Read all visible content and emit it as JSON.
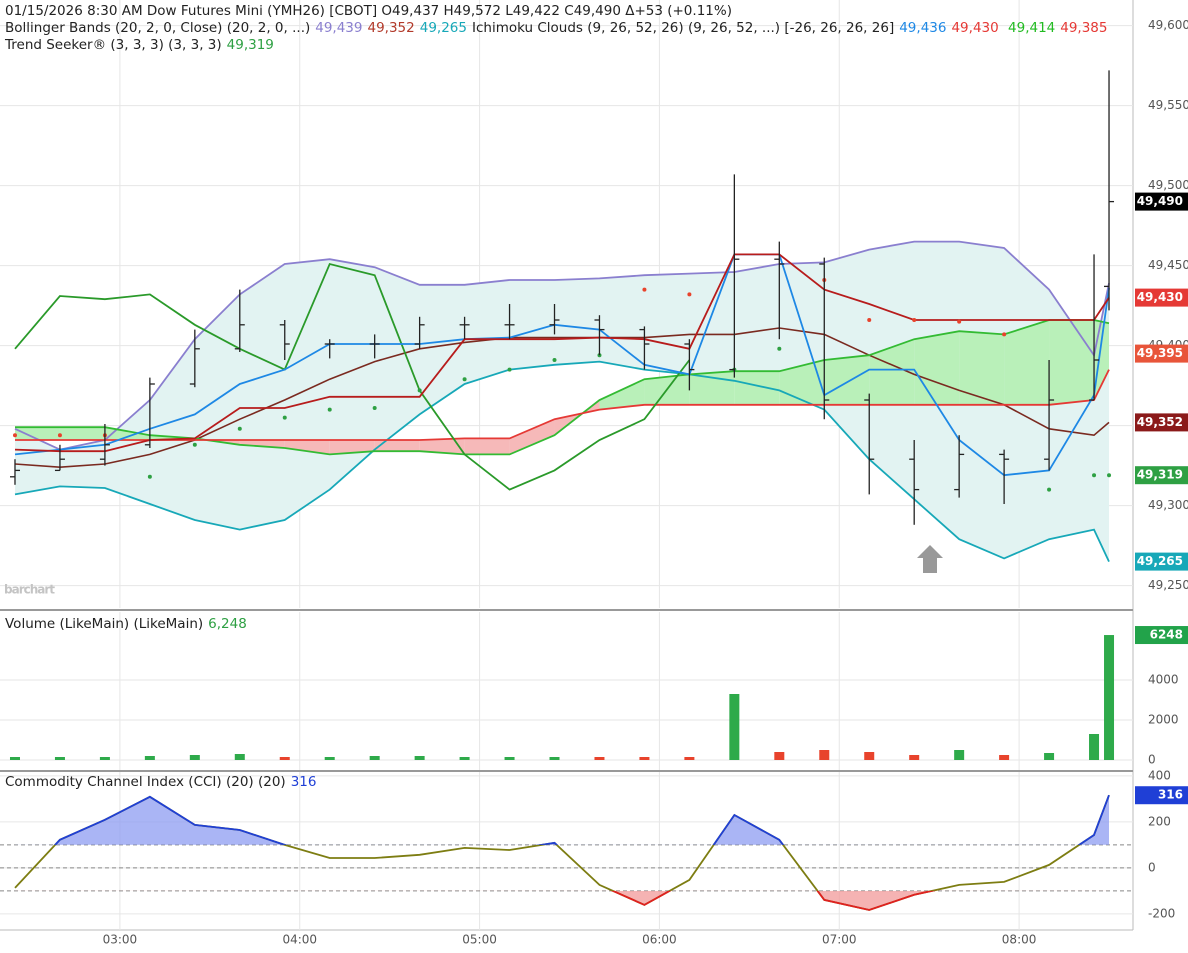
{
  "chart_data": [
    {
      "type": "ohlc",
      "legend": [
        [
          {
            "text": "01/15/2026  8:30 AM Dow Futures Mini (YMH26) [CBOT] O49,437 H49,572 L49,422 C49,490 Δ+53 (+0.11%)",
            "color": "#222222"
          }
        ],
        [
          {
            "text": "Bollinger Bands (20, 2, 0, Close)  (20, 2, 0, ...)",
            "color": "#222222"
          },
          {
            "text": "49,439",
            "color": "#8a7fcf"
          },
          {
            "text": "49,352",
            "color": "#b23a2a"
          },
          {
            "text": "49,265",
            "color": "#17a8b8"
          },
          {
            "text": "Ichimoku Clouds (9, 26, 52, 26)  (9, 26, 52, ...) [-26, 26, 26, 26]",
            "color": "#222222"
          },
          {
            "text": "49,436",
            "color": "#1e88e5"
          },
          {
            "text": "49,430",
            "color": "#e53935"
          },
          {
            "text": " 49,414",
            "color": "#22bb22"
          },
          {
            "text": "49,385",
            "color": "#e53935"
          }
        ],
        [
          {
            "text": "Trend Seeker® (3, 3, 3)  (3, 3, 3)",
            "color": "#222222"
          },
          {
            "text": "49,319",
            "color": "#2ea043"
          }
        ]
      ],
      "watermark": "barchart",
      "x": [
        "02:25",
        "02:40",
        "02:55",
        "03:10",
        "03:25",
        "03:40",
        "03:55",
        "04:10",
        "04:25",
        "04:40",
        "04:55",
        "05:10",
        "05:25",
        "05:40",
        "05:55",
        "06:10",
        "06:25",
        "06:40",
        "06:55",
        "07:10",
        "07:25",
        "07:40",
        "07:55",
        "08:10",
        "08:25",
        "08:30"
      ],
      "xlim": [
        "02:20",
        "08:38"
      ],
      "xticks": [
        "03:00",
        "04:00",
        "05:00",
        "06:00",
        "07:00",
        "08:00"
      ],
      "open": [
        49318,
        49322,
        49329,
        49338,
        49376,
        49398,
        49413,
        49401,
        49401,
        49401,
        49413,
        49413,
        49413,
        49416,
        49410,
        49401,
        49385,
        49454,
        49451,
        49366,
        49329,
        49310,
        49332,
        49329,
        49366,
        49437
      ],
      "high": [
        49329,
        49338,
        49351,
        49380,
        49410,
        49435,
        49416,
        49404,
        49407,
        49418,
        49418,
        49426,
        49426,
        49419,
        49412,
        49404,
        49507,
        49465,
        49455,
        49370,
        49341,
        49344,
        49335,
        49391,
        49457,
        49572
      ],
      "low": [
        49313,
        49322,
        49325,
        49336,
        49374,
        49396,
        49391,
        49392,
        49392,
        49398,
        49404,
        49404,
        49407,
        49394,
        49385,
        49372,
        49380,
        49404,
        49354,
        49307,
        49288,
        49305,
        49301,
        49322,
        49366,
        49422
      ],
      "close": [
        49322,
        49329,
        49338,
        49376,
        49398,
        49413,
        49401,
        49401,
        49401,
        49413,
        49413,
        49413,
        49416,
        49410,
        49401,
        49385,
        49454,
        49451,
        49366,
        49329,
        49310,
        49332,
        49329,
        49366,
        49391,
        49490
      ],
      "bar_color": "#222222",
      "bollinger": {
        "upper": [
          49348,
          49335,
          49341,
          49366,
          49404,
          49432,
          49451,
          49454,
          49449,
          49438,
          49438,
          49441,
          49441,
          49442,
          49444,
          49445,
          49446,
          49451,
          49452,
          49460,
          49465,
          49465,
          49461,
          49435,
          49394,
          49439
        ],
        "middle": [
          49326,
          49324,
          49326,
          49332,
          49341,
          49354,
          49366,
          49379,
          49390,
          49398,
          49402,
          49405,
          49405,
          49405,
          49405,
          49407,
          49407,
          49411,
          49407,
          49394,
          49382,
          49372,
          49363,
          49348,
          49344,
          49352
        ],
        "lower": [
          49307,
          49312,
          49311,
          49301,
          49291,
          49285,
          49291,
          49310,
          49335,
          49357,
          49376,
          49385,
          49388,
          49390,
          49385,
          49382,
          49378,
          49372,
          49360,
          49329,
          49304,
          49279,
          49267,
          49279,
          49285,
          49265
        ],
        "upper_color": "#8a7fcf",
        "middle_color": "#7a2a20",
        "lower_color": "#17a8b8",
        "fill": "#e2f3f2"
      },
      "ichimoku": {
        "conversion": [
          49332,
          49335,
          49338,
          49348,
          49357,
          49376,
          49385,
          49401,
          49401,
          49401,
          49404,
          49405,
          49413,
          49410,
          49388,
          49382,
          49457,
          49457,
          49369,
          49385,
          49385,
          49341,
          49319,
          49322,
          49369,
          49436
        ],
        "base": [
          49335,
          49334,
          49334,
          49341,
          49342,
          49361,
          49361,
          49368,
          49368,
          49368,
          49404,
          49404,
          49404,
          49405,
          49404,
          49398,
          49457,
          49457,
          49435,
          49426,
          49416,
          49416,
          49416,
          49416,
          49416,
          49430
        ],
        "span_a": [
          49349,
          49349,
          49349,
          49344,
          49342,
          49338,
          49336,
          49332,
          49334,
          49334,
          49332,
          49332,
          49344,
          49366,
          49379,
          49382,
          49384,
          49384,
          49391,
          49394,
          49404,
          49409,
          49407,
          49416,
          49416,
          49414
        ],
        "span_b": [
          49341,
          49341,
          49341,
          49341,
          49341,
          49341,
          49341,
          49341,
          49341,
          49341,
          49342,
          49342,
          49354,
          49360,
          49363,
          49363,
          49363,
          49363,
          49363,
          49363,
          49363,
          49363,
          49363,
          49363,
          49366,
          49385
        ],
        "lagging": [
          49398,
          49431,
          49429,
          49432,
          49413,
          49398,
          49385,
          49451,
          49444,
          49372,
          49332,
          49310,
          49322,
          49341,
          49354,
          49391,
          null,
          null,
          null,
          null,
          null,
          null,
          null,
          null,
          null,
          null
        ],
        "conversion_color": "#1e88e5",
        "base_color": "#b71c1c",
        "span_a_color": "#33bb33",
        "span_b_color": "#e53935",
        "lagging_color": "#2a9a2a",
        "cloud_up": "#b9f0b9",
        "cloud_down": "#f6b9b9"
      },
      "trend_seeker": {
        "values": [
          49344,
          49344,
          49344,
          49318,
          49338,
          49348,
          49355,
          49360,
          49361,
          49372,
          49379,
          49385,
          49391,
          49394,
          49435,
          49432,
          49385,
          49398,
          49441,
          49416,
          49416,
          49415,
          49407,
          49310,
          49319,
          49319
        ],
        "up_color": "#2ea043",
        "down_color": "#e8432c"
      },
      "ylim": [
        49236,
        49616
      ],
      "yticks": [
        {
          "value": 49250,
          "label": "49,250"
        },
        {
          "value": 49300,
          "label": "49,300"
        },
        {
          "value": 49350,
          "label": "49,350"
        },
        {
          "value": 49400,
          "label": "49,400"
        },
        {
          "value": 49450,
          "label": "49,450"
        },
        {
          "value": 49500,
          "label": "49,500"
        },
        {
          "value": 49550,
          "label": "49,550"
        },
        {
          "value": 49600,
          "label": "49,600"
        }
      ],
      "tags": [
        {
          "value": 49490,
          "label": "49,490",
          "color": "#000000"
        },
        {
          "value": 49430,
          "label": "49,430",
          "color": "#e53935"
        },
        {
          "value": 49395,
          "label": "49,395",
          "color": "#e8553a"
        },
        {
          "value": 49352,
          "label": "49,352",
          "color": "#8b1a1a"
        },
        {
          "value": 49319,
          "label": "49,319",
          "color": "#2ea043"
        },
        {
          "value": 49265,
          "label": "49,265",
          "color": "#17a8b8"
        }
      ],
      "grid": true
    },
    {
      "type": "bar",
      "legend": [
        [
          {
            "text": "Volume (LikeMain)  (LikeMain)",
            "color": "#222222"
          },
          {
            "text": "6,248",
            "color": "#2ea043"
          }
        ]
      ],
      "x": [
        "02:25",
        "02:40",
        "02:55",
        "03:10",
        "03:25",
        "03:40",
        "03:55",
        "04:10",
        "04:25",
        "04:40",
        "04:55",
        "05:10",
        "05:25",
        "05:40",
        "05:55",
        "06:10",
        "06:25",
        "06:40",
        "06:55",
        "07:10",
        "07:25",
        "07:40",
        "07:55",
        "08:10",
        "08:25",
        "08:30"
      ],
      "xlim": [
        "02:20",
        "08:38"
      ],
      "values": [
        150,
        150,
        150,
        200,
        250,
        300,
        150,
        150,
        200,
        200,
        150,
        150,
        150,
        150,
        150,
        150,
        3300,
        400,
        500,
        400,
        250,
        500,
        250,
        350,
        1300,
        6248
      ],
      "up_color": "#2eaa4a",
      "down_color": "#e8432c",
      "ylim": [
        -500,
        7400
      ],
      "yticks": [
        0,
        2000,
        4000
      ],
      "tags": [
        {
          "value": 6248,
          "label": "6248",
          "color": "#22a34a"
        }
      ],
      "grid": true
    },
    {
      "type": "line",
      "legend": [
        [
          {
            "text": "Commodity Channel Index (CCI) (20)  (20)",
            "color": "#222222"
          },
          {
            "text": "316",
            "color": "#1f3fd6"
          }
        ]
      ],
      "x": [
        "02:25",
        "02:40",
        "02:55",
        "03:10",
        "03:25",
        "03:40",
        "03:55",
        "04:10",
        "04:25",
        "04:40",
        "04:55",
        "05:10",
        "05:25",
        "05:40",
        "05:55",
        "06:10",
        "06:25",
        "06:40",
        "06:55",
        "07:10",
        "07:25",
        "07:40",
        "07:55",
        "08:10",
        "08:25",
        "08:30"
      ],
      "xlim": [
        "02:20",
        "08:38"
      ],
      "values": [
        -87,
        122,
        209,
        309,
        187,
        165,
        100,
        43,
        43,
        57,
        87,
        78,
        109,
        -74,
        -161,
        -52,
        230,
        122,
        -139,
        -183,
        -117,
        -74,
        -61,
        13,
        143,
        316
      ],
      "color": "#7d7d12",
      "high_color": "#1f3fd6",
      "low_color": "#e02020",
      "high_fill": "#8e9cf2",
      "low_fill": "#f29a9a",
      "reference_lines": [
        -100,
        0,
        100
      ],
      "ylim": [
        -270,
        417
      ],
      "yticks": [
        -200,
        0,
        200,
        400
      ],
      "tags": [
        {
          "value": 316,
          "label": "316",
          "color": "#1f3fd6"
        }
      ],
      "grid": true
    }
  ]
}
